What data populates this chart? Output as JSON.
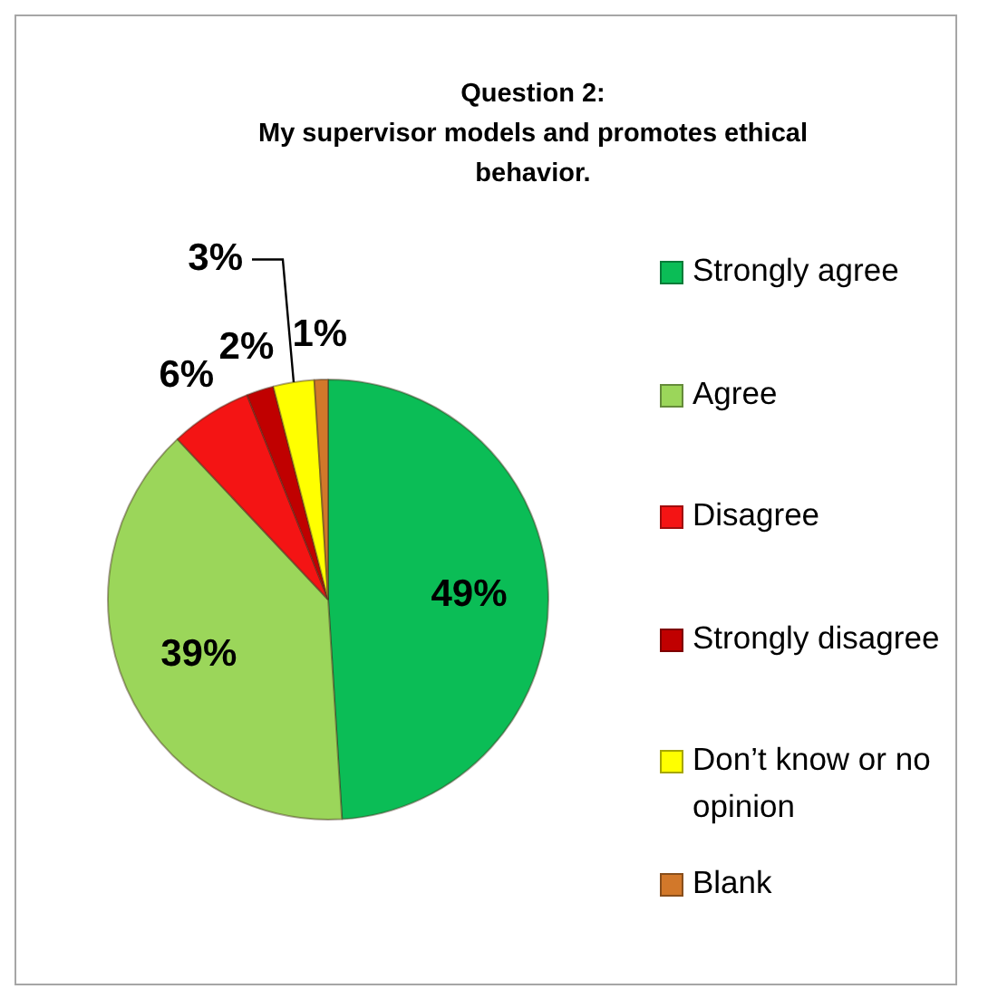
{
  "chart_data": {
    "type": "pie",
    "title": "Question 2:\nMy supervisor models and promotes ethical behavior.",
    "categories": [
      "Strongly agree",
      "Agree",
      "Disagree",
      "Strongly disagree",
      "Don’t know or no opinion",
      "Blank"
    ],
    "values": [
      49,
      39,
      6,
      2,
      3,
      1
    ],
    "colors": [
      "#0bbd56",
      "#9bd65a",
      "#f41414",
      "#c00000",
      "#ffff00",
      "#d2782a"
    ],
    "value_labels": [
      "49%",
      "39%",
      "6%",
      "2%",
      "3%",
      "1%"
    ],
    "legend": "right"
  }
}
